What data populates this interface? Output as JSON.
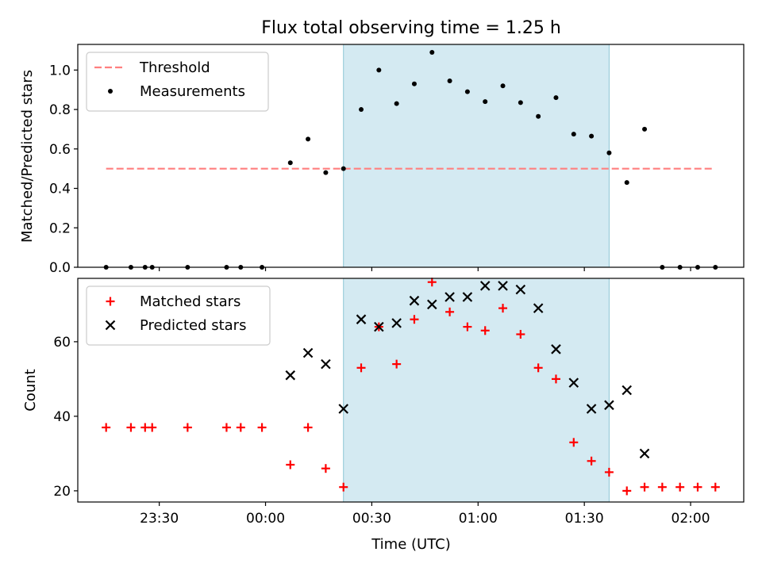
{
  "chart_data": [
    {
      "type": "scatter",
      "title": "Flux total observing time = 1.25 h",
      "ylabel": "Matched/Predicted stars",
      "ylim": [
        0,
        1.13
      ],
      "yticks": [
        "0.0",
        "0.2",
        "0.4",
        "0.6",
        "0.8",
        "1.0"
      ],
      "legend_position": "top-left",
      "highlight_span": {
        "start": "00:22",
        "end": "01:37",
        "color": "#add8e6"
      },
      "threshold": {
        "name": "Threshold",
        "value": 0.5,
        "start": "23:15",
        "end": "02:06",
        "color": "#ff7f7f",
        "style": "dashed"
      },
      "series": [
        {
          "name": "Measurements",
          "color": "#000000",
          "marker": "dot",
          "points": [
            [
              "23:15",
              0.0
            ],
            [
              "23:22",
              0.0
            ],
            [
              "23:26",
              0.0
            ],
            [
              "23:28",
              0.0
            ],
            [
              "23:38",
              0.0
            ],
            [
              "23:49",
              0.0
            ],
            [
              "23:53",
              0.0
            ],
            [
              "23:59",
              0.0
            ],
            [
              "00:07",
              0.53
            ],
            [
              "00:12",
              0.65
            ],
            [
              "00:17",
              0.48
            ],
            [
              "00:22",
              0.5
            ],
            [
              "00:27",
              0.8
            ],
            [
              "00:32",
              1.0
            ],
            [
              "00:37",
              0.83
            ],
            [
              "00:42",
              0.93
            ],
            [
              "00:47",
              1.09
            ],
            [
              "00:52",
              0.945
            ],
            [
              "00:57",
              0.89
            ],
            [
              "01:02",
              0.84
            ],
            [
              "01:07",
              0.92
            ],
            [
              "01:12",
              0.835
            ],
            [
              "01:17",
              0.765
            ],
            [
              "01:22",
              0.86
            ],
            [
              "01:27",
              0.675
            ],
            [
              "01:32",
              0.665
            ],
            [
              "01:37",
              0.58
            ],
            [
              "01:42",
              0.43
            ],
            [
              "01:47",
              0.7
            ],
            [
              "01:52",
              0.0
            ],
            [
              "01:57",
              0.0
            ],
            [
              "02:02",
              0.0
            ],
            [
              "02:07",
              0.0
            ]
          ]
        }
      ]
    },
    {
      "type": "scatter",
      "xlabel": "Time (UTC)",
      "ylabel": "Count",
      "ylim": [
        17,
        77
      ],
      "yticks": [
        "20",
        "40",
        "60"
      ],
      "xticks": [
        "23:30",
        "00:00",
        "00:30",
        "01:00",
        "01:30",
        "02:00"
      ],
      "legend_position": "top-left",
      "highlight_span": {
        "start": "00:22",
        "end": "01:37",
        "color": "#add8e6"
      },
      "series": [
        {
          "name": "Matched stars",
          "color": "#ff0000",
          "marker": "plus",
          "points": [
            [
              "23:15",
              37
            ],
            [
              "23:22",
              37
            ],
            [
              "23:26",
              37
            ],
            [
              "23:28",
              37
            ],
            [
              "23:38",
              37
            ],
            [
              "23:49",
              37
            ],
            [
              "23:53",
              37
            ],
            [
              "23:59",
              37
            ],
            [
              "00:07",
              27
            ],
            [
              "00:12",
              37
            ],
            [
              "00:17",
              26
            ],
            [
              "00:22",
              21
            ],
            [
              "00:27",
              53
            ],
            [
              "00:32",
              64
            ],
            [
              "00:37",
              54
            ],
            [
              "00:42",
              66
            ],
            [
              "00:47",
              76
            ],
            [
              "00:52",
              68
            ],
            [
              "00:57",
              64
            ],
            [
              "01:02",
              63
            ],
            [
              "01:07",
              69
            ],
            [
              "01:12",
              62
            ],
            [
              "01:17",
              53
            ],
            [
              "01:22",
              50
            ],
            [
              "01:27",
              33
            ],
            [
              "01:32",
              28
            ],
            [
              "01:37",
              25
            ],
            [
              "01:42",
              20
            ],
            [
              "01:47",
              21
            ],
            [
              "01:52",
              21
            ],
            [
              "01:57",
              21
            ],
            [
              "02:02",
              21
            ],
            [
              "02:07",
              21
            ]
          ]
        },
        {
          "name": "Predicted stars",
          "color": "#000000",
          "marker": "x",
          "points": [
            [
              "00:07",
              51
            ],
            [
              "00:12",
              57
            ],
            [
              "00:17",
              54
            ],
            [
              "00:22",
              42
            ],
            [
              "00:27",
              66
            ],
            [
              "00:32",
              64
            ],
            [
              "00:37",
              65
            ],
            [
              "00:42",
              71
            ],
            [
              "00:47",
              70
            ],
            [
              "00:52",
              72
            ],
            [
              "00:57",
              72
            ],
            [
              "01:02",
              75
            ],
            [
              "01:07",
              75
            ],
            [
              "01:12",
              74
            ],
            [
              "01:17",
              69
            ],
            [
              "01:22",
              58
            ],
            [
              "01:27",
              49
            ],
            [
              "01:32",
              42
            ],
            [
              "01:37",
              43
            ],
            [
              "01:42",
              47
            ],
            [
              "01:47",
              30
            ]
          ]
        }
      ]
    }
  ]
}
